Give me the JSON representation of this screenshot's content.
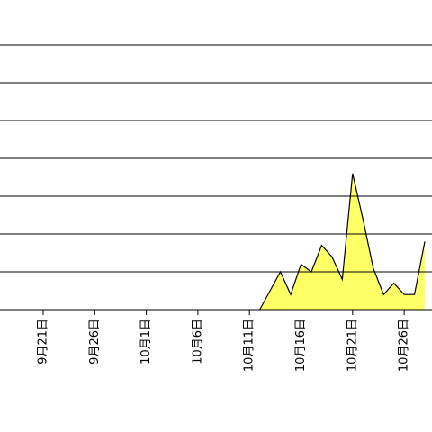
{
  "chart_data": {
    "type": "area",
    "color": "#ffff66",
    "line_color": "#000000",
    "categories": [
      null,
      null,
      null,
      null,
      "9月21日",
      null,
      null,
      null,
      null,
      "9月26日",
      null,
      null,
      null,
      null,
      "10月1日",
      null,
      null,
      null,
      null,
      "10月6日",
      null,
      null,
      null,
      null,
      "10月11日",
      null,
      null,
      null,
      null,
      "10月16日",
      null,
      null,
      null,
      null,
      "10月21日",
      null,
      null,
      null,
      null,
      "10月26日",
      null,
      null
    ],
    "values": [
      null,
      null,
      null,
      null,
      null,
      null,
      null,
      null,
      null,
      null,
      null,
      null,
      null,
      null,
      null,
      null,
      null,
      null,
      null,
      null,
      null,
      null,
      null,
      null,
      null,
      0,
      0.5,
      1.0,
      0.4,
      1.2,
      1.0,
      1.7,
      1.4,
      0.8,
      3.6,
      2.4,
      1.1,
      0.4,
      0.7,
      0.4,
      0.4,
      1.8
    ],
    "ylim": [
      0,
      7
    ],
    "yticks": [
      0,
      1,
      2,
      3,
      4,
      5,
      6,
      7
    ],
    "grid": true
  }
}
